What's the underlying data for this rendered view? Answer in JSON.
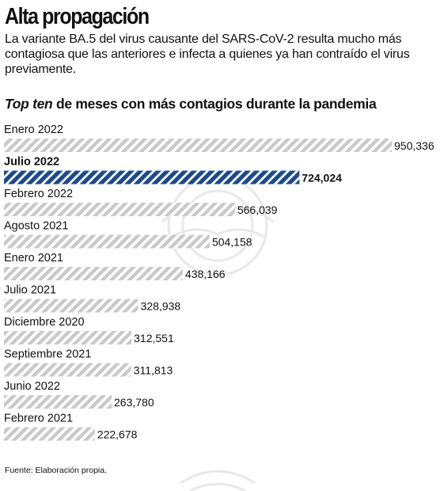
{
  "title": "Alta propagación",
  "subtitle": "La variante BA.5 del virus causante del SARS-CoV-2 resulta mucho más contagiosa que las anteriores e infecta a quienes ya han contraído el virus previamente.",
  "heading": {
    "italic": "Top ten",
    "rest": " de meses con más contagios durante la pandemia"
  },
  "source": "Fuente: Elaboración propia.",
  "colors": {
    "hatch_default": "#c9c9c9",
    "hatch_highlight": "#1c4a8a",
    "text": "#111111"
  },
  "chart_data": {
    "type": "bar",
    "orientation": "horizontal",
    "categories": [
      "Enero 2022",
      "Julio 2022",
      "Febrero 2022",
      "Agosto 2021",
      "Enero 2021",
      "Julio 2021",
      "Diciembre 2020",
      "Septiembre 2021",
      "Junio 2022",
      "Febrero 2021"
    ],
    "values": [
      950336,
      724024,
      566039,
      504158,
      438166,
      328938,
      312551,
      311813,
      263780,
      222678
    ],
    "value_labels": [
      "950,336",
      "724,024",
      "566,039",
      "504,158",
      "438,166",
      "328,938",
      "312,551",
      "311,813",
      "263,780",
      "222,678"
    ],
    "highlight": "Julio 2022",
    "grid": false,
    "legend": false,
    "xlabel": "",
    "ylabel": ""
  }
}
